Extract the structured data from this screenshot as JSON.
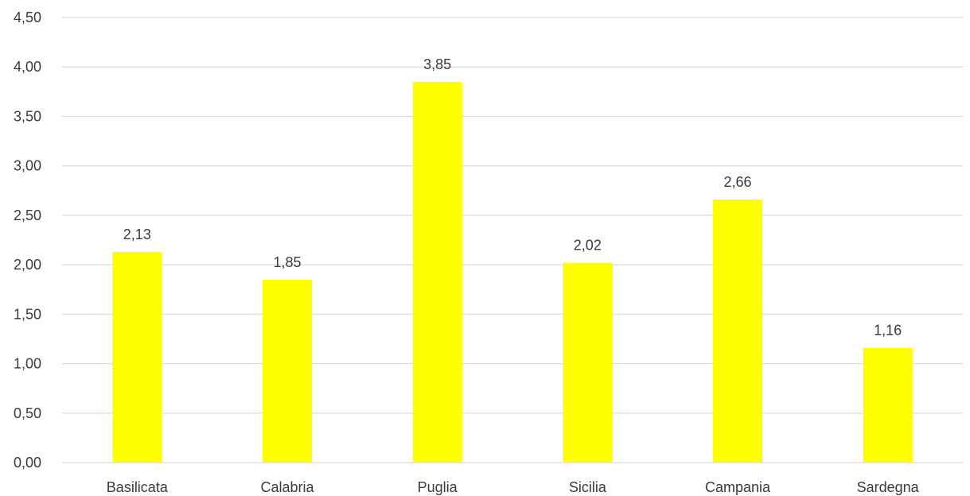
{
  "chart_data": {
    "type": "bar",
    "title": "",
    "xlabel": "",
    "ylabel": "",
    "categories": [
      "Basilicata",
      "Calabria",
      "Puglia",
      "Sicilia",
      "Campania",
      "Sardegna"
    ],
    "values": [
      2.13,
      1.85,
      3.85,
      2.02,
      2.66,
      1.16
    ],
    "value_labels": [
      "2,13",
      "1,85",
      "3,85",
      "2,02",
      "2,66",
      "1,16"
    ],
    "ylim": [
      0,
      4.5
    ],
    "y_ticks": [
      0,
      0.5,
      1,
      1.5,
      2,
      2.5,
      3,
      3.5,
      4,
      4.5
    ],
    "y_tick_labels": [
      "0,00",
      "0,50",
      "1,00",
      "1,50",
      "2,00",
      "2,50",
      "3,00",
      "3,50",
      "4,00",
      "4,50"
    ],
    "grid": true,
    "legend": "none",
    "colors": {
      "bar": "#ffff00",
      "grid": "#d9d9d9",
      "text": "#3a3a3a"
    }
  }
}
